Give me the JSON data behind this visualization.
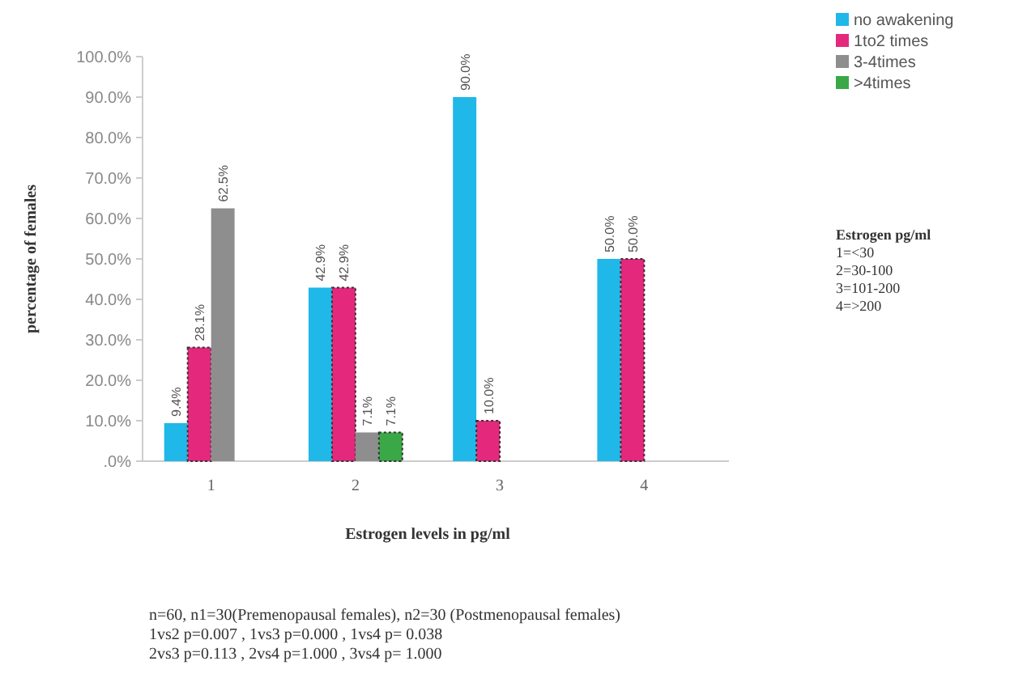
{
  "chart_data": {
    "type": "bar",
    "xlabel": "Estrogen levels in pg/ml",
    "ylabel": "percentage of females",
    "categories": [
      "1",
      "2",
      "3",
      "4"
    ],
    "series": [
      {
        "name": "no awakening",
        "color": "#1fb8e8",
        "values": [
          9.4,
          42.9,
          90.0,
          50.0
        ],
        "value_labels": [
          "9.4%",
          "42.9%",
          "90.0%",
          "50.0%"
        ]
      },
      {
        "name": "1to2 times",
        "color": "#e4287c",
        "values": [
          28.1,
          42.9,
          10.0,
          50.0
        ],
        "value_labels": [
          "28.1%",
          "42.9%",
          "10.0%",
          "50.0%"
        ]
      },
      {
        "name": "3-4times",
        "color": "#8e8e8e",
        "values": [
          62.5,
          7.1,
          null,
          null
        ],
        "value_labels": [
          "62.5%",
          "7.1%",
          null,
          null
        ]
      },
      {
        "name": ">4times",
        "color": "#3aa846",
        "values": [
          null,
          7.1,
          null,
          null
        ],
        "value_labels": [
          null,
          "7.1%",
          null,
          null
        ]
      }
    ],
    "ylim": [
      0,
      100
    ],
    "yticks": [
      {
        "value": 0,
        "label": ".0%"
      },
      {
        "value": 10,
        "label": "10.0%"
      },
      {
        "value": 20,
        "label": "20.0%"
      },
      {
        "value": 30,
        "label": "30.0%"
      },
      {
        "value": 40,
        "label": "40.0%"
      },
      {
        "value": 50,
        "label": "50.0%"
      },
      {
        "value": 60,
        "label": "60.0%"
      },
      {
        "value": 70,
        "label": "70.0%"
      },
      {
        "value": 80,
        "label": "80.0%"
      },
      {
        "value": 90,
        "label": "90.0%"
      },
      {
        "value": 100,
        "label": "100.0%"
      }
    ],
    "grid": false,
    "legend": "top right",
    "annotations": [
      "Estrogen pg/ml\n1=<30\n2=30-100\n3=101-200\n4=>200",
      "n=60, n1=30(Premenopausal females), n2=30 (Postmenopausal females)\n1vs2 p=0.007 , 1vs3 p=0.000 , 1vs4 p= 0.038\n2vs3 p=0.113 , 2vs4 p=1.000 , 3vs4 p= 1.000"
    ]
  }
}
